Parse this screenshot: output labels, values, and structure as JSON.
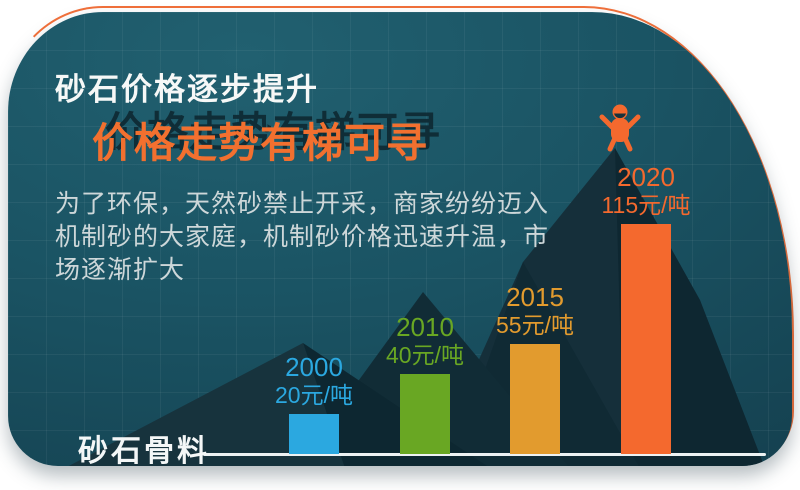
{
  "card": {
    "title": "砂石价格逐步提升",
    "subtitle": "价格走势有梯可寻",
    "description_lines": [
      "为了环保，天然砂禁止开采，商家纷纷迈入",
      "机制砂的大家庭，机制砂价格迅速升温，市",
      "场逐渐扩大"
    ],
    "footer_label": "砂石骨料"
  },
  "chart_data": {
    "type": "bar",
    "title": "砂石价格逐步提升 价格走势有梯可寻",
    "categories": [
      "2000",
      "2010",
      "2015",
      "2020"
    ],
    "values": [
      20,
      40,
      55,
      115
    ],
    "unit": "元/吨",
    "value_labels": [
      "20元/吨",
      "40元/吨",
      "55元/吨",
      "115元/吨"
    ],
    "bar_colors": [
      "#2ba8e0",
      "#69a723",
      "#e29b2e",
      "#f4692e"
    ],
    "xlabel": "",
    "ylabel": "",
    "ylim": [
      0,
      120
    ],
    "grid": false,
    "legend": false,
    "annotation": "person celebrating on mountain peak above 2020 bar"
  },
  "colors": {
    "card_background": "#1a5363",
    "accent_border": "#f2703a",
    "subtitle_text": "#f2702f",
    "title_text": "#f6f8f7",
    "body_text": "#cdd7d9",
    "baseline": "#edf2f3",
    "mountain_dark": "#0e2731",
    "mountain_light": "#17333d"
  },
  "icons": {
    "person": "person-celebrating-icon",
    "mountains": "mountain-silhouette"
  }
}
